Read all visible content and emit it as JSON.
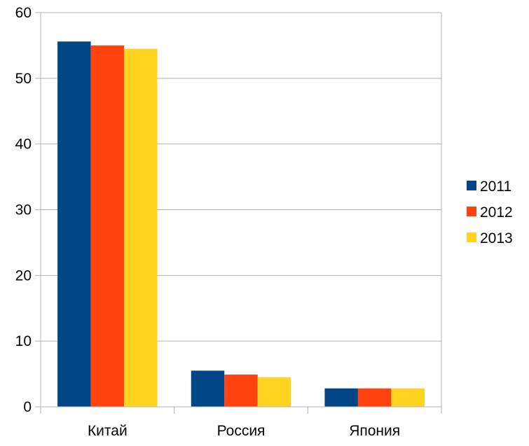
{
  "chart_data": {
    "type": "bar",
    "title": "",
    "xlabel": "",
    "ylabel": "",
    "categories": [
      "Китай",
      "Россия",
      "Япония"
    ],
    "series": [
      {
        "name": "2011",
        "color": "#004586",
        "values": [
          55.6,
          5.5,
          2.8
        ]
      },
      {
        "name": "2012",
        "color": "#ff420e",
        "values": [
          55.0,
          4.9,
          2.8
        ]
      },
      {
        "name": "2013",
        "color": "#ffd320",
        "values": [
          54.5,
          4.5,
          2.8
        ]
      }
    ],
    "ylim": [
      0,
      60
    ],
    "yticks": [
      0,
      10,
      20,
      30,
      40,
      50,
      60
    ],
    "grid": true,
    "legend": "right"
  }
}
